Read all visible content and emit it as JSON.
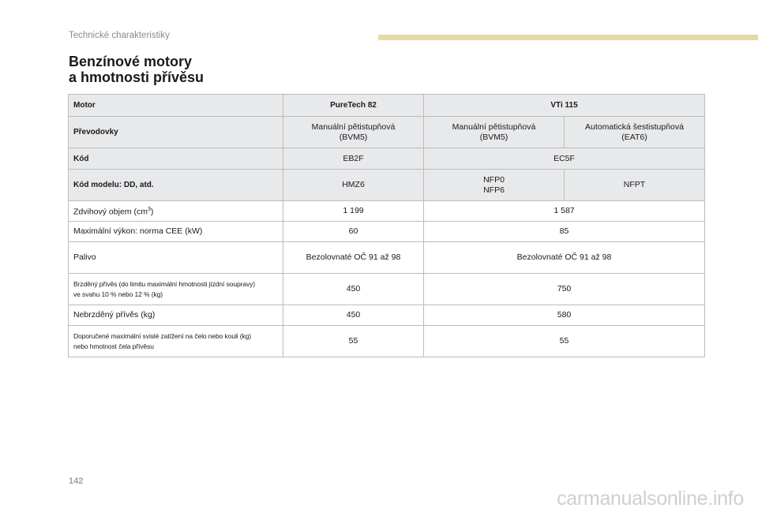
{
  "header": {
    "section": "Technické charakteristiky",
    "accent_color": "#e3dba6"
  },
  "title": {
    "line1": "Benzínové motory",
    "line2": "a hmotnosti přívěsu"
  },
  "table": {
    "rows": {
      "motor": {
        "label": "Motor",
        "col1": "PureTech 82",
        "col2": "VTi 115"
      },
      "gearbox": {
        "label": "Převodovky",
        "col1_line1": "Manuální pětistupňová",
        "col1_line2": "(BVM5)",
        "col2_line1": "Manuální pětistupňová",
        "col2_line2": "(BVM5)",
        "col3_line1": "Automatická šestistupňová",
        "col3_line2": "(EAT6)"
      },
      "code": {
        "label": "Kód",
        "col1": "EB2F",
        "col2": "EC5F"
      },
      "model_code": {
        "label": "Kód modelu: DD, atd.",
        "col1": "HMZ6",
        "col2_line1": "NFP0",
        "col2_line2": "NFP6",
        "col3": "NFPT"
      },
      "displacement": {
        "label_main": "Zdvihový objem (cm",
        "label_sup": "3",
        "label_end": ")",
        "col1": "1 199",
        "col2": "1 587"
      },
      "power": {
        "label": "Maximální výkon: norma CEE (kW)",
        "col1": "60",
        "col2": "85"
      },
      "fuel": {
        "label": "Palivo",
        "col1": "Bezolovnaté OČ 91 až 98",
        "col2": "Bezolovnaté OČ 91 až 98"
      },
      "braked_trailer": {
        "label_line1": "Brzděný přívěs (do limitu maximální hmotnosti jízdní soupravy)",
        "label_line2": "ve svahu 10 % nebo 12 % (kg)",
        "col1": "450",
        "col2": "750"
      },
      "unbraked_trailer": {
        "label": "Nebrzděný přívěs (kg)",
        "col1": "450",
        "col2": "580"
      },
      "nose_weight": {
        "label_line1": "Doporučené maximální svislé zatížení na čelo nebo kouli (kg)",
        "label_line2": "nebo hmotnost čela přívěsu",
        "col1": "55",
        "col2": "55"
      }
    }
  },
  "footer": {
    "page_number": "142",
    "watermark": "carmanualsonline.info"
  }
}
